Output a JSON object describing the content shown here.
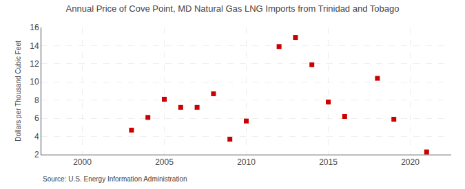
{
  "chart_data": {
    "type": "scatter",
    "title": "Annual Price of Cove Point, MD Natural Gas LNG Imports from Trinidad and Tobago",
    "ylabel": "Dollars per Thousand Cubic Feet",
    "annotations": [
      "Source: U.S. Energy Information Administration"
    ],
    "x": [
      2003,
      2004,
      2005,
      2006,
      2007,
      2008,
      2009,
      2010,
      2012,
      2013,
      2014,
      2015,
      2016,
      2018,
      2019,
      2021
    ],
    "values": [
      4.7,
      6.1,
      8.1,
      7.2,
      7.2,
      8.7,
      3.7,
      5.7,
      13.9,
      14.9,
      11.9,
      7.8,
      6.2,
      10.4,
      5.9,
      2.3
    ],
    "color": "#cc0000",
    "marker": "square",
    "xlim": [
      1997.5,
      2022.5
    ],
    "xticks": [
      2000,
      2005,
      2010,
      2015,
      2020
    ],
    "ylim": [
      2,
      16
    ],
    "yticks": [
      2,
      4,
      6,
      8,
      10,
      12,
      14,
      16
    ],
    "grid": true
  }
}
